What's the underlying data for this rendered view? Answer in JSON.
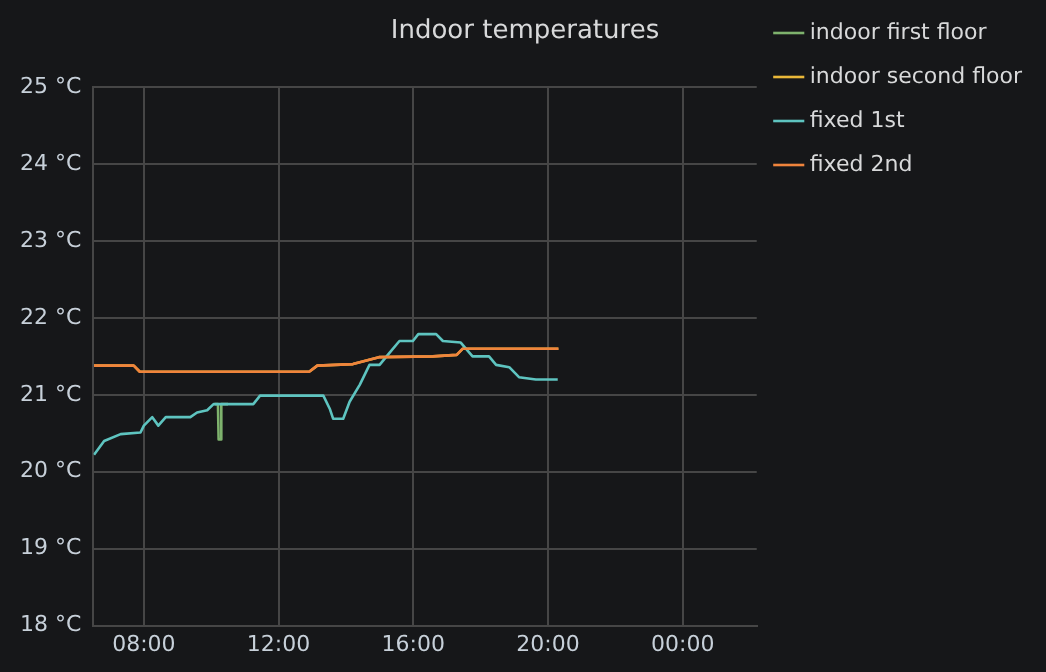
{
  "chart_data": {
    "type": "line",
    "title": "Indoor temperatures",
    "legend": "right",
    "grid": true,
    "marker": "none",
    "line_style": "solid",
    "xlim": [
      6.5,
      26.2
    ],
    "xticks": [
      {
        "value": 8,
        "label": "08:00"
      },
      {
        "value": 12,
        "label": "12:00"
      },
      {
        "value": 16,
        "label": "16:00"
      },
      {
        "value": 20,
        "label": "20:00"
      },
      {
        "value": 24,
        "label": "00:00"
      }
    ],
    "ylim": [
      18,
      25
    ],
    "yticks": [
      {
        "value": 18,
        "label": "18 °C"
      },
      {
        "value": 19,
        "label": "19 °C"
      },
      {
        "value": 20,
        "label": "20 °C"
      },
      {
        "value": 21,
        "label": "21 °C"
      },
      {
        "value": 22,
        "label": "22 °C"
      },
      {
        "value": 23,
        "label": "23 °C"
      },
      {
        "value": 24,
        "label": "24 °C"
      },
      {
        "value": 25,
        "label": "25 °C"
      }
    ],
    "series": [
      {
        "name": "indoor first floor",
        "color": "#7eb26d",
        "x": [
          10.1,
          10.2,
          10.22,
          10.28,
          10.3,
          10.5
        ],
        "values": [
          20.88,
          20.88,
          20.42,
          20.42,
          20.88,
          20.88
        ]
      },
      {
        "name": "indoor second floor",
        "color": "#eab839",
        "x": [
          6.52,
          7.7,
          7.88,
          12.91,
          13.15,
          14.21,
          14.98,
          16.58,
          17.29,
          17.47,
          20.31
        ],
        "values": [
          21.38,
          21.38,
          21.3,
          21.3,
          21.38,
          21.4,
          21.49,
          21.5,
          21.52,
          21.6,
          21.6
        ]
      },
      {
        "name": "fixed 1st",
        "color": "#5ec4c0",
        "x": [
          6.52,
          6.82,
          7.31,
          7.9,
          8.0,
          8.25,
          8.43,
          8.65,
          9.38,
          9.58,
          9.88,
          10.07,
          11.25,
          11.45,
          13.33,
          13.52,
          13.62,
          13.92,
          14.11,
          14.41,
          14.7,
          15.0,
          15.3,
          15.59,
          15.99,
          16.15,
          16.68,
          16.88,
          17.41,
          17.76,
          18.25,
          18.46,
          18.85,
          19.14,
          19.64,
          20.29
        ],
        "values": [
          20.22,
          20.4,
          20.49,
          20.51,
          20.6,
          20.71,
          20.6,
          20.71,
          20.71,
          20.77,
          20.8,
          20.88,
          20.88,
          20.99,
          20.99,
          20.82,
          20.69,
          20.69,
          20.91,
          21.13,
          21.39,
          21.39,
          21.55,
          21.7,
          21.7,
          21.79,
          21.79,
          21.7,
          21.68,
          21.5,
          21.5,
          21.39,
          21.36,
          21.23,
          21.2,
          21.2
        ]
      },
      {
        "name": "fixed 2nd",
        "color": "#ef843c",
        "x": [
          6.52,
          7.7,
          7.88,
          12.91,
          13.15,
          14.21,
          14.98,
          16.58,
          17.29,
          17.47,
          20.31
        ],
        "values": [
          21.38,
          21.38,
          21.3,
          21.3,
          21.38,
          21.4,
          21.49,
          21.5,
          21.52,
          21.6,
          21.6
        ]
      }
    ]
  }
}
